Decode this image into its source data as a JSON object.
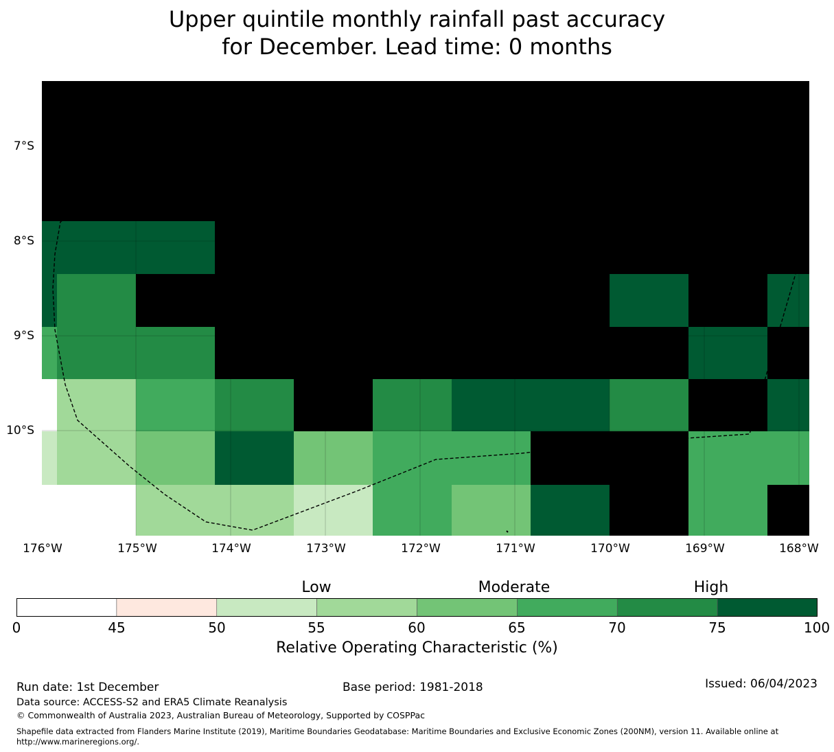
{
  "title": {
    "line1": "Upper quintile monthly rainfall past accuracy",
    "line2": "for December. Lead time: 0 months"
  },
  "map": {
    "lat_labels": [
      "7°S",
      "8°S",
      "9°S",
      "10°S"
    ],
    "lon_labels": [
      "176°W",
      "175°W",
      "174°W",
      "173°W",
      "172°W",
      "171°W",
      "170°W",
      "169°W",
      "168°W"
    ],
    "grid_rows": [
      [
        8,
        8,
        8,
        8,
        8,
        8,
        8,
        8,
        8,
        8
      ],
      [
        8,
        8,
        8,
        8,
        8,
        8,
        8,
        8,
        8,
        8
      ],
      [
        7,
        7,
        8,
        8,
        8,
        8,
        8,
        8,
        8,
        8
      ],
      [
        6,
        8,
        8,
        8,
        8,
        8,
        8,
        7,
        8,
        7
      ],
      [
        6,
        6,
        8,
        8,
        8,
        8,
        8,
        8,
        7,
        8
      ],
      [
        3,
        5,
        6,
        8,
        6,
        7,
        7,
        6,
        8,
        7
      ],
      [
        3,
        4,
        7,
        4,
        5,
        5,
        8,
        8,
        5,
        5
      ],
      [
        0,
        3,
        3,
        2,
        5,
        4,
        7,
        8,
        5,
        8
      ]
    ],
    "outline_color": "#000000"
  },
  "colorbar": {
    "categories": [
      {
        "label": "Low"
      },
      {
        "label": "Moderate"
      },
      {
        "label": "High"
      }
    ],
    "ticks": [
      "0",
      "45",
      "50",
      "55",
      "60",
      "65",
      "70",
      "75",
      "100"
    ],
    "colors": [
      "#ffffff",
      "#fee8df",
      "#c8e9c1",
      "#a1d999",
      "#73c476",
      "#41ab5d",
      "#238b45",
      "#005a32"
    ],
    "label": "Relative Operating Characteristic (%)"
  },
  "footer": {
    "run_date": "Run date: 1st December",
    "base_period": "Base period: 1981-2018",
    "issued": "Issued: 06/04/2023",
    "data_source": "Data source: ACCESS-S2 and ERA5 Climate Reanalysis",
    "copyright": "© Commonwealth of Australia 2023, Australian Bureau of Meteorology, Supported by COSPPac",
    "shapefile_line1": "Shapefile data extracted from Flanders Marine Institute (2019), Maritime Boundaries Geodatabase: Maritime Boundaries and Exclusive Economic Zones (200NM), version 11. Available online at",
    "shapefile_line2": "http://www.marineregions.org/."
  }
}
